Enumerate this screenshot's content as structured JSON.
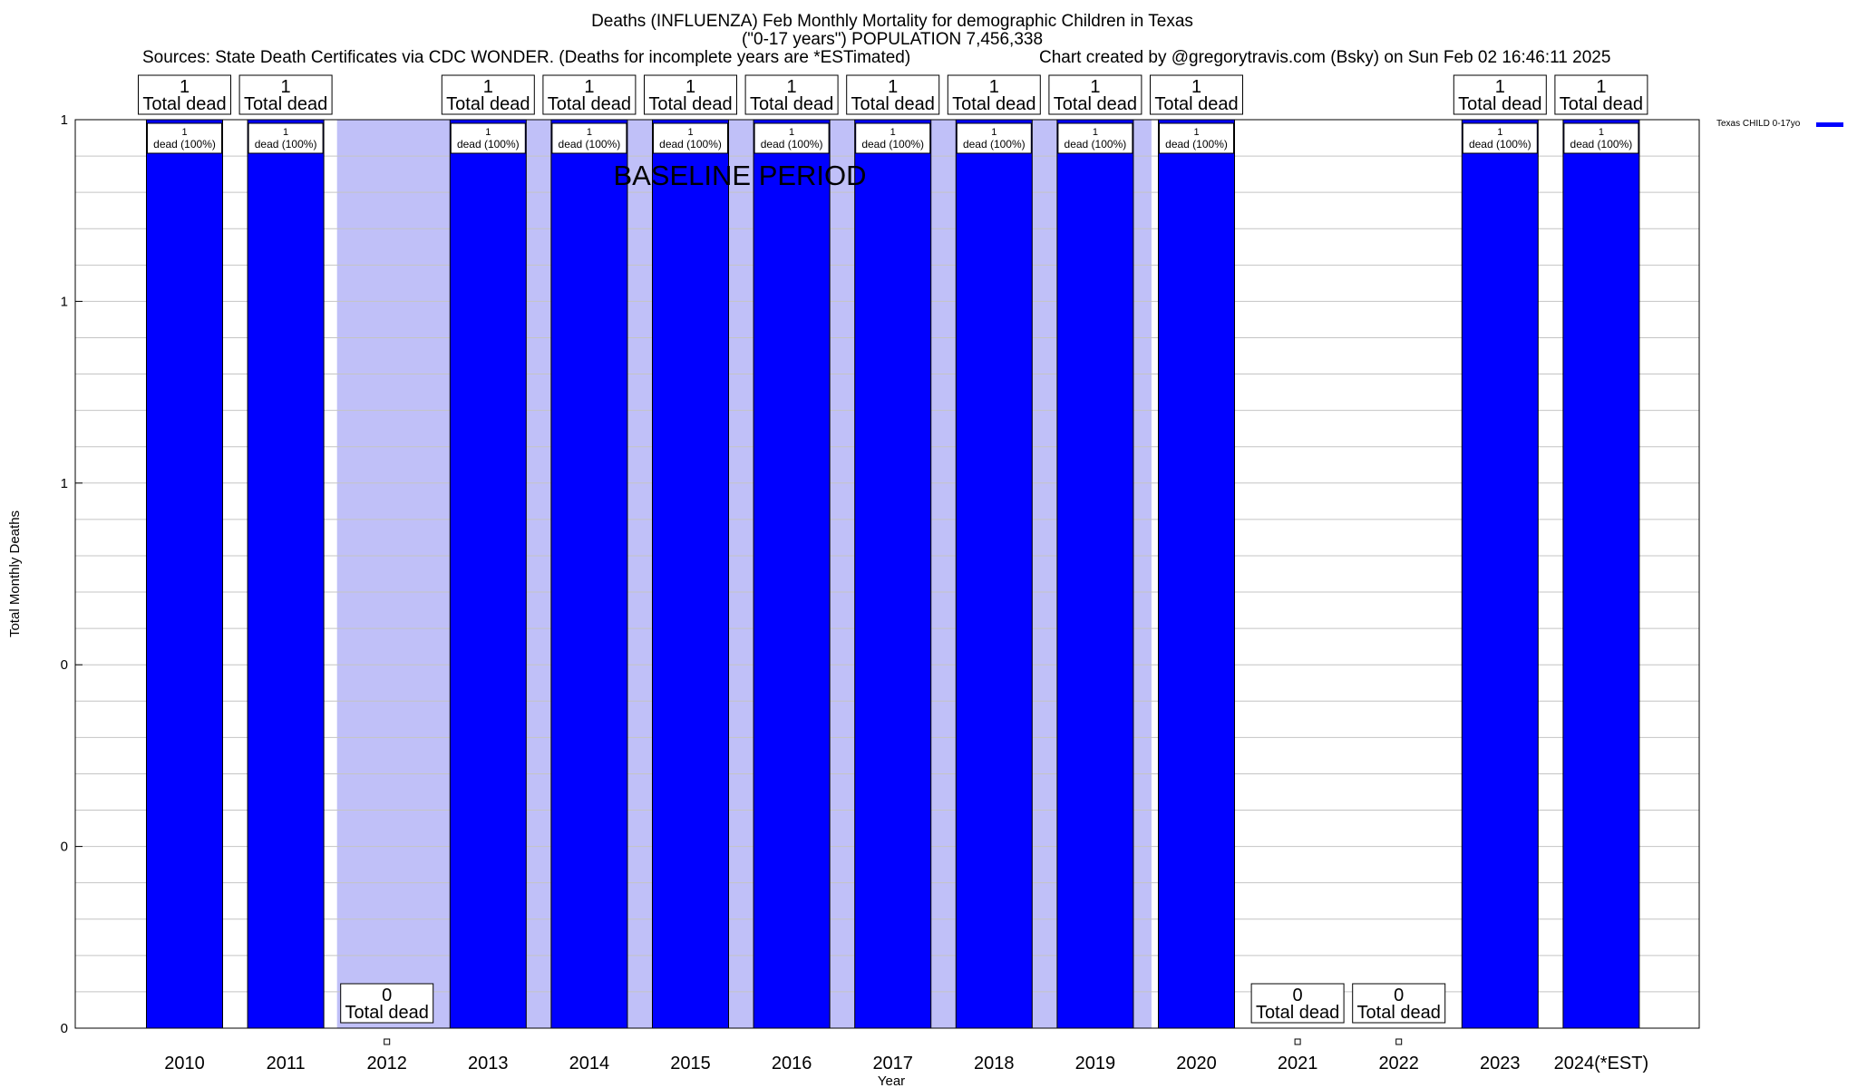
{
  "chart_data": {
    "type": "bar",
    "title_lines": [
      "Deaths (INFLUENZA) Feb Monthly Mortality for demographic Children in Texas",
      "(\"0-17 years\") POPULATION 7,456,338"
    ],
    "sources_text": "Sources: State Death Certificates via CDC WONDER. (Deaths for incomplete years are *ESTimated)",
    "credit_text": "Chart created by @gregorytravis.com (Bsky) on Sun Feb 02 16:46:11 2025",
    "xlabel": "Year",
    "ylabel": "Total Monthly Deaths",
    "ylim": [
      0,
      1
    ],
    "y_tick_labels": [
      "0",
      "0",
      "0",
      "1",
      "1",
      "1"
    ],
    "categories": [
      "2010",
      "2011",
      "2012",
      "2013",
      "2014",
      "2015",
      "2016",
      "2017",
      "2018",
      "2019",
      "2020",
      "2021",
      "2022",
      "2023",
      "2024(*EST)"
    ],
    "series": [
      {
        "name": "Texas CHILD 0-17yo",
        "color": "#0000ff",
        "values": [
          1,
          1,
          0,
          1,
          1,
          1,
          1,
          1,
          1,
          1,
          1,
          0,
          0,
          1,
          1
        ]
      }
    ],
    "total_label_suffix": "Total dead",
    "bar_label_suffix": "dead (100%)",
    "baseline_label": "BASELINE PERIOD",
    "baseline_years": [
      "2012",
      "2019"
    ],
    "baseline_color": "#c0c0f8",
    "grid": true,
    "legend_position": "top-right"
  }
}
